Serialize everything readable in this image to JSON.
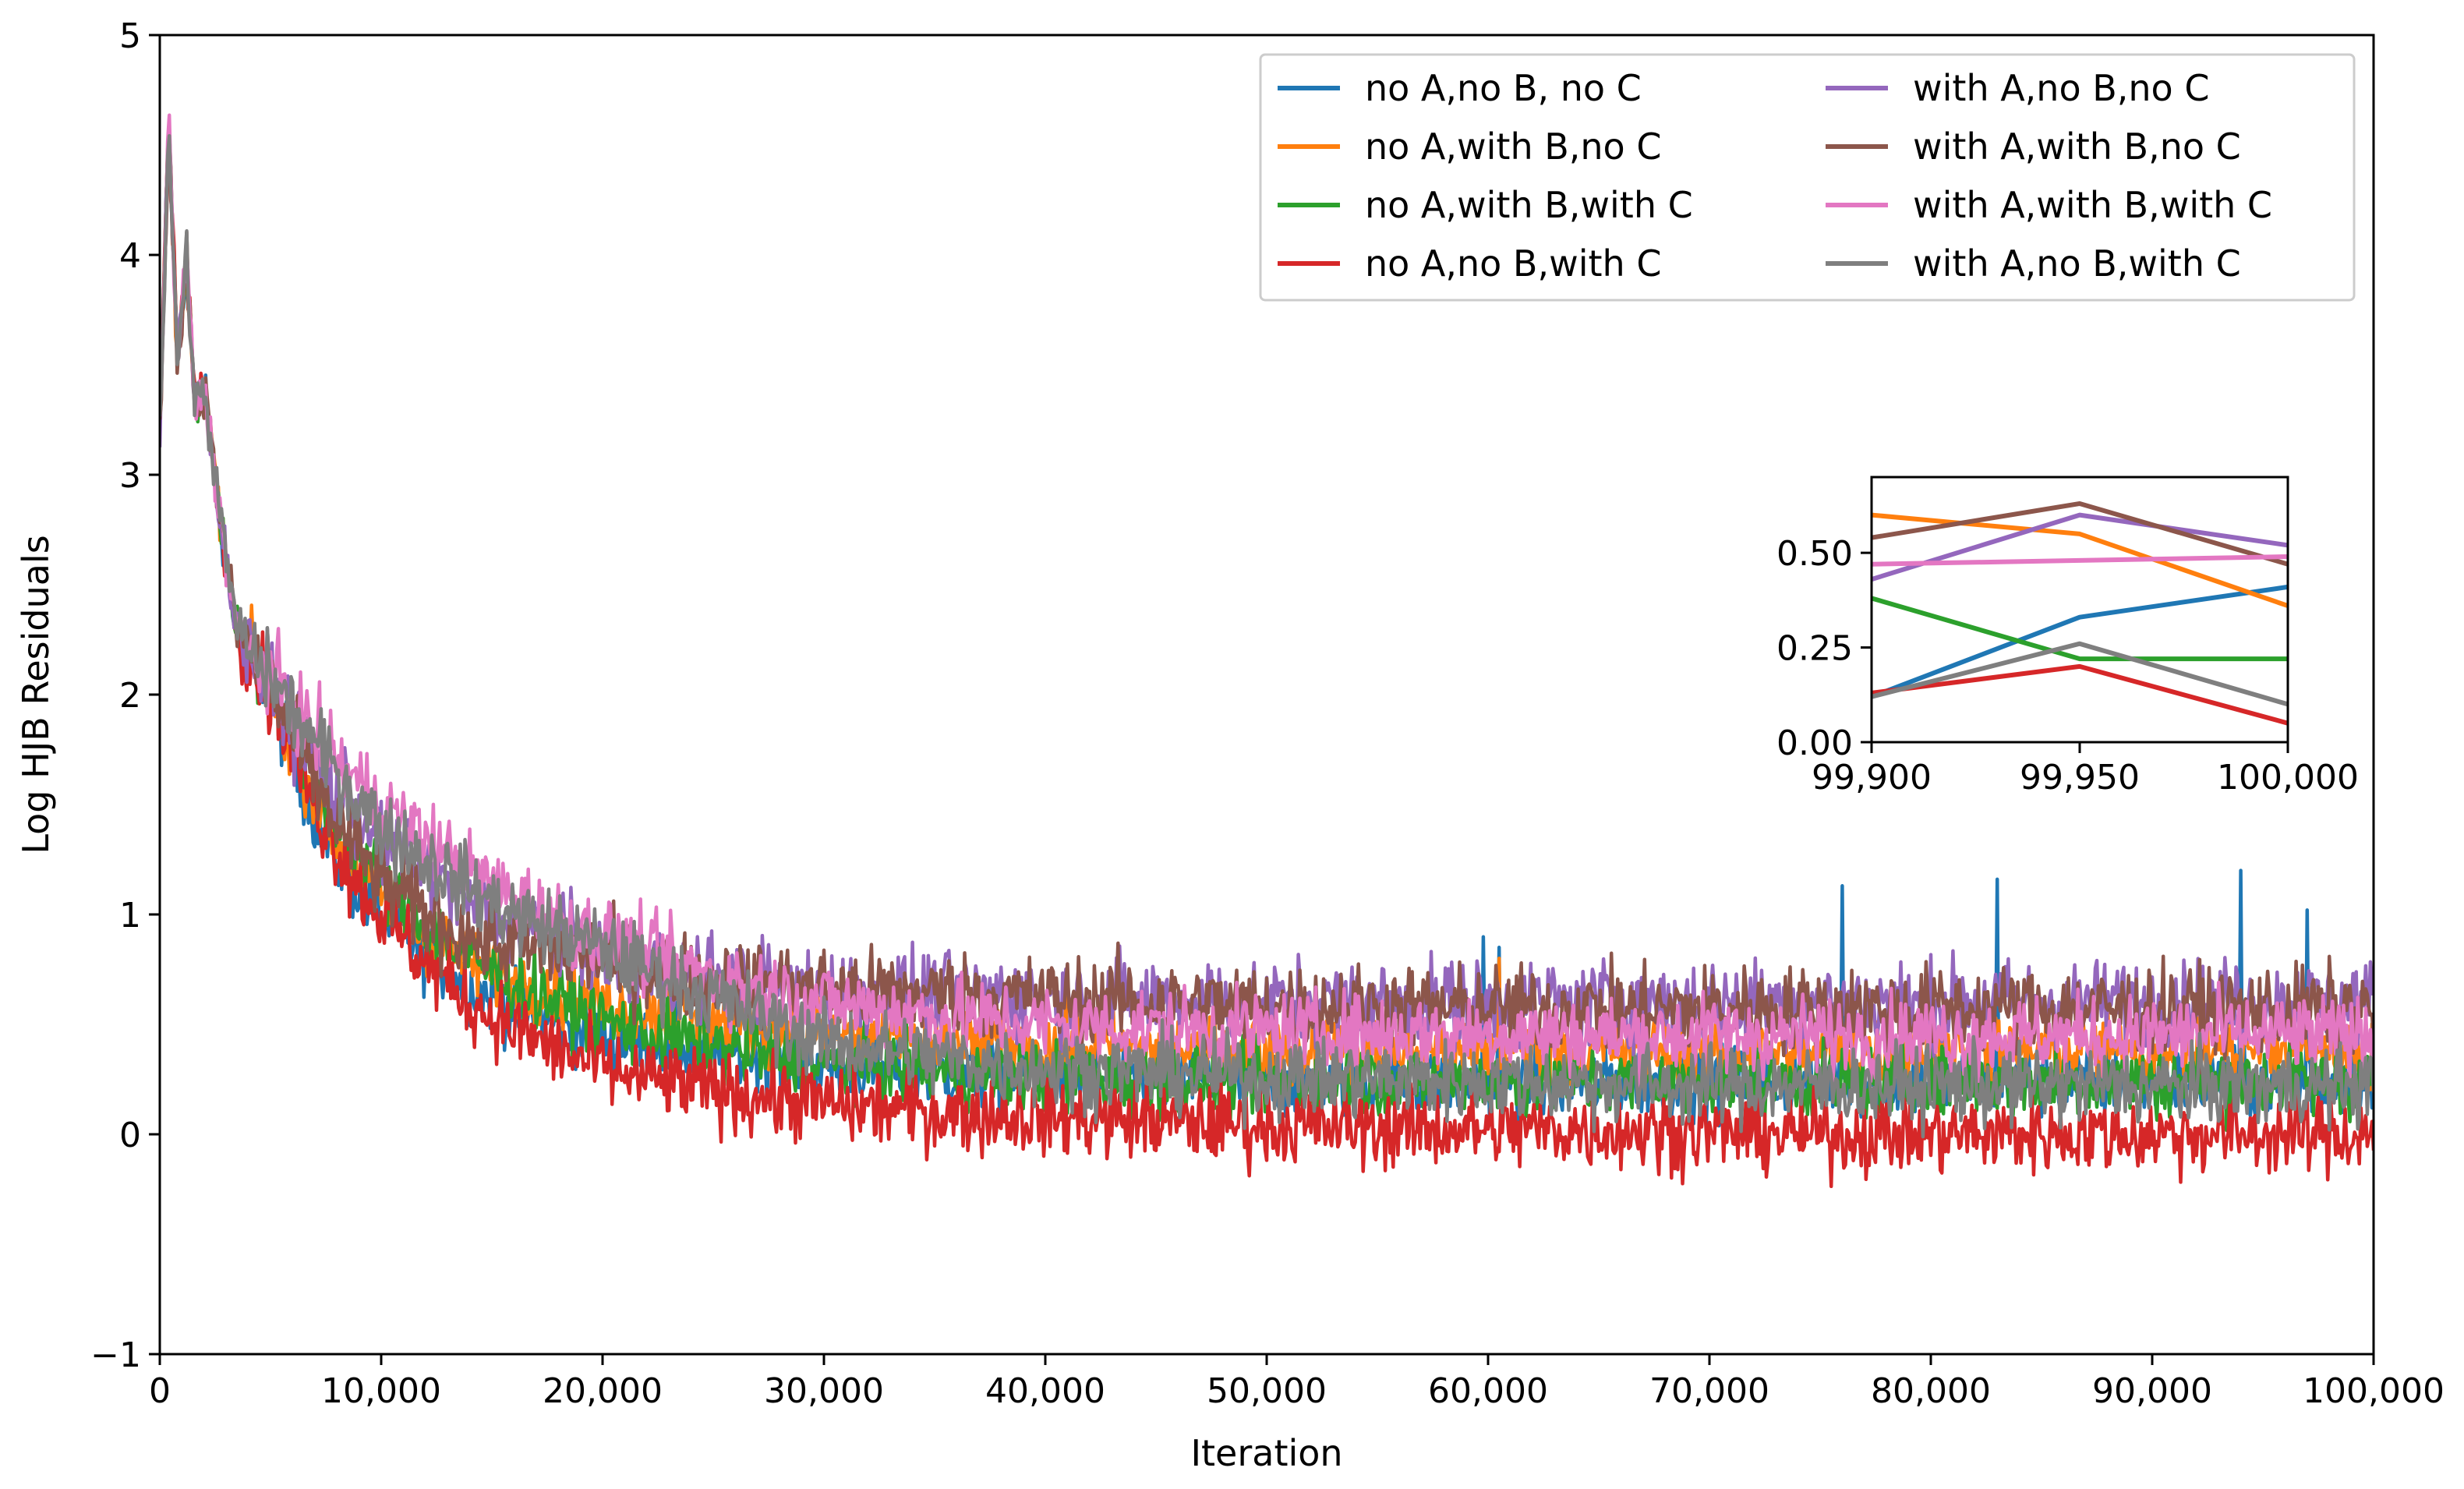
{
  "chart_data": [
    {
      "type": "line",
      "title": "",
      "xlabel": "Iteration",
      "ylabel": "Log HJB Residuals",
      "xlim": [
        0,
        100000
      ],
      "ylim": [
        -1,
        5
      ],
      "grid": false,
      "legend_position": "top-right",
      "legend_columns": 2,
      "x_ticks": [
        0,
        10000,
        20000,
        30000,
        40000,
        50000,
        60000,
        70000,
        80000,
        90000,
        100000
      ],
      "x_tick_labels": [
        "0",
        "10,000",
        "20,000",
        "30,000",
        "40,000",
        "50,000",
        "60,000",
        "70,000",
        "80,000",
        "90,000",
        "100,000"
      ],
      "y_ticks": [
        -1,
        0,
        1,
        2,
        3,
        4,
        5
      ],
      "y_tick_labels": [
        "−1",
        "0",
        "1",
        "2",
        "3",
        "4",
        "5"
      ],
      "x": [
        0,
        400,
        800,
        1200,
        1600,
        2000,
        2500,
        3000,
        3500,
        4000,
        5000,
        6000,
        7000,
        8000,
        9000,
        10000,
        12000,
        14000,
        16000,
        18000,
        20000,
        22000,
        25000,
        28000,
        30000,
        35000,
        40000,
        45000,
        50000,
        55000,
        60000,
        65000,
        70000,
        75000,
        80000,
        85000,
        90000,
        95000,
        100000
      ],
      "series": [
        {
          "name": "no A,no B, no C",
          "color": "#1f77b4",
          "noise": 0.05,
          "values": [
            3.2,
            4.6,
            3.5,
            4.0,
            3.3,
            3.4,
            3.0,
            2.6,
            2.3,
            2.2,
            2.0,
            1.7,
            1.45,
            1.25,
            1.1,
            1.0,
            0.82,
            0.67,
            0.57,
            0.5,
            0.45,
            0.42,
            0.38,
            0.34,
            0.32,
            0.28,
            0.26,
            0.25,
            0.24,
            0.24,
            0.24,
            0.24,
            0.24,
            0.24,
            0.24,
            0.24,
            0.24,
            0.24,
            0.24
          ],
          "spikes": [
            {
              "x": 59800,
              "y": 1.05
            },
            {
              "x": 60500,
              "y": 0.85
            },
            {
              "x": 76000,
              "y": 1.13
            },
            {
              "x": 83000,
              "y": 1.16
            },
            {
              "x": 94000,
              "y": 1.2
            },
            {
              "x": 97000,
              "y": 1.02
            }
          ]
        },
        {
          "name": "no A,with B,no C",
          "color": "#ff7f0e",
          "noise": 0.05,
          "values": [
            3.2,
            4.6,
            3.5,
            4.0,
            3.3,
            3.4,
            3.0,
            2.6,
            2.3,
            2.2,
            2.0,
            1.78,
            1.55,
            1.35,
            1.2,
            1.08,
            0.9,
            0.78,
            0.7,
            0.64,
            0.6,
            0.56,
            0.52,
            0.48,
            0.46,
            0.42,
            0.4,
            0.39,
            0.38,
            0.38,
            0.38,
            0.38,
            0.38,
            0.38,
            0.38,
            0.38,
            0.38,
            0.38,
            0.38
          ],
          "spikes": [
            {
              "x": 60500,
              "y": 0.8
            }
          ]
        },
        {
          "name": "no A,with B,with C",
          "color": "#2ca02c",
          "noise": 0.05,
          "values": [
            3.2,
            4.6,
            3.5,
            4.0,
            3.3,
            3.4,
            3.0,
            2.6,
            2.3,
            2.2,
            2.0,
            1.8,
            1.6,
            1.42,
            1.27,
            1.15,
            0.95,
            0.8,
            0.68,
            0.6,
            0.52,
            0.46,
            0.4,
            0.35,
            0.32,
            0.28,
            0.26,
            0.25,
            0.24,
            0.24,
            0.24,
            0.24,
            0.24,
            0.24,
            0.24,
            0.24,
            0.24,
            0.24,
            0.24
          ],
          "spikes": []
        },
        {
          "name": "no A,no B,with C",
          "color": "#d62728",
          "noise": 0.055,
          "values": [
            3.2,
            4.6,
            3.5,
            4.0,
            3.3,
            3.4,
            3.0,
            2.6,
            2.3,
            2.2,
            2.0,
            1.75,
            1.5,
            1.3,
            1.12,
            1.0,
            0.78,
            0.6,
            0.48,
            0.38,
            0.3,
            0.25,
            0.2,
            0.16,
            0.14,
            0.1,
            0.08,
            0.06,
            0.04,
            0.03,
            0.02,
            0.02,
            0.01,
            0.0,
            0.0,
            0.0,
            0.0,
            0.0,
            0.0
          ],
          "spikes": []
        },
        {
          "name": "with A,no B,no C",
          "color": "#9467bd",
          "noise": 0.06,
          "values": [
            3.2,
            4.6,
            3.5,
            4.0,
            3.3,
            3.4,
            3.0,
            2.6,
            2.3,
            2.2,
            2.05,
            1.85,
            1.7,
            1.55,
            1.45,
            1.35,
            1.2,
            1.05,
            0.95,
            0.88,
            0.82,
            0.76,
            0.71,
            0.68,
            0.66,
            0.64,
            0.62,
            0.61,
            0.6,
            0.6,
            0.6,
            0.6,
            0.6,
            0.6,
            0.6,
            0.6,
            0.6,
            0.6,
            0.6
          ],
          "spikes": []
        },
        {
          "name": "with A,with B,no C",
          "color": "#8c564b",
          "noise": 0.06,
          "values": [
            3.2,
            4.6,
            3.5,
            4.05,
            3.3,
            3.4,
            3.0,
            2.6,
            2.3,
            2.2,
            2.05,
            1.8,
            1.6,
            1.42,
            1.28,
            1.15,
            1.0,
            0.9,
            0.85,
            0.83,
            0.8,
            0.75,
            0.7,
            0.68,
            0.66,
            0.64,
            0.62,
            0.6,
            0.58,
            0.58,
            0.57,
            0.57,
            0.57,
            0.57,
            0.57,
            0.57,
            0.57,
            0.57,
            0.57
          ],
          "spikes": []
        },
        {
          "name": "with A,with B,with C",
          "color": "#e377c2",
          "noise": 0.055,
          "values": [
            3.2,
            4.6,
            3.5,
            4.0,
            3.3,
            3.4,
            3.0,
            2.6,
            2.3,
            2.2,
            2.1,
            1.95,
            1.82,
            1.7,
            1.6,
            1.5,
            1.35,
            1.2,
            1.08,
            0.98,
            0.9,
            0.82,
            0.72,
            0.64,
            0.6,
            0.54,
            0.5,
            0.48,
            0.47,
            0.46,
            0.46,
            0.45,
            0.45,
            0.45,
            0.45,
            0.45,
            0.45,
            0.45,
            0.45
          ],
          "spikes": []
        },
        {
          "name": "with A,no B,with C",
          "color": "#7f7f7f",
          "noise": 0.055,
          "values": [
            3.2,
            4.6,
            3.5,
            4.0,
            3.3,
            3.4,
            3.0,
            2.6,
            2.3,
            2.2,
            2.08,
            1.92,
            1.78,
            1.65,
            1.52,
            1.4,
            1.25,
            1.12,
            1.0,
            0.92,
            0.85,
            0.75,
            0.62,
            0.5,
            0.42,
            0.35,
            0.3,
            0.28,
            0.26,
            0.25,
            0.24,
            0.23,
            0.22,
            0.22,
            0.22,
            0.22,
            0.22,
            0.22,
            0.22
          ],
          "spikes": []
        }
      ]
    },
    {
      "type": "line",
      "title": "",
      "xlabel": "",
      "ylabel": "",
      "role": "inset",
      "xlim": [
        99900,
        100000
      ],
      "ylim": [
        0,
        0.7
      ],
      "x_ticks": [
        99900,
        99950,
        100000
      ],
      "x_tick_labels": [
        "99,900",
        "99,950",
        "100,000"
      ],
      "y_ticks": [
        0,
        0.25,
        0.5
      ],
      "y_tick_labels": [
        "0.00",
        "0.25",
        "0.50"
      ],
      "x": [
        99900,
        99950,
        100000
      ],
      "series": [
        {
          "name": "no A,no B, no C",
          "color": "#1f77b4",
          "values": [
            0.12,
            0.33,
            0.41
          ]
        },
        {
          "name": "no A,with B,no C",
          "color": "#ff7f0e",
          "values": [
            0.6,
            0.55,
            0.36
          ]
        },
        {
          "name": "no A,with B,with C",
          "color": "#2ca02c",
          "values": [
            0.38,
            0.22,
            0.22
          ]
        },
        {
          "name": "no A,no B,with C",
          "color": "#d62728",
          "values": [
            0.13,
            0.2,
            0.05
          ]
        },
        {
          "name": "with A,no B,no C",
          "color": "#9467bd",
          "values": [
            0.43,
            0.6,
            0.52
          ]
        },
        {
          "name": "with A,with B,no C",
          "color": "#8c564b",
          "values": [
            0.54,
            0.63,
            0.47
          ]
        },
        {
          "name": "with A,with B,with C",
          "color": "#e377c2",
          "values": [
            0.47,
            0.48,
            0.49
          ]
        },
        {
          "name": "with A,no B,with C",
          "color": "#7f7f7f",
          "values": [
            0.12,
            0.26,
            0.1
          ]
        }
      ]
    }
  ]
}
